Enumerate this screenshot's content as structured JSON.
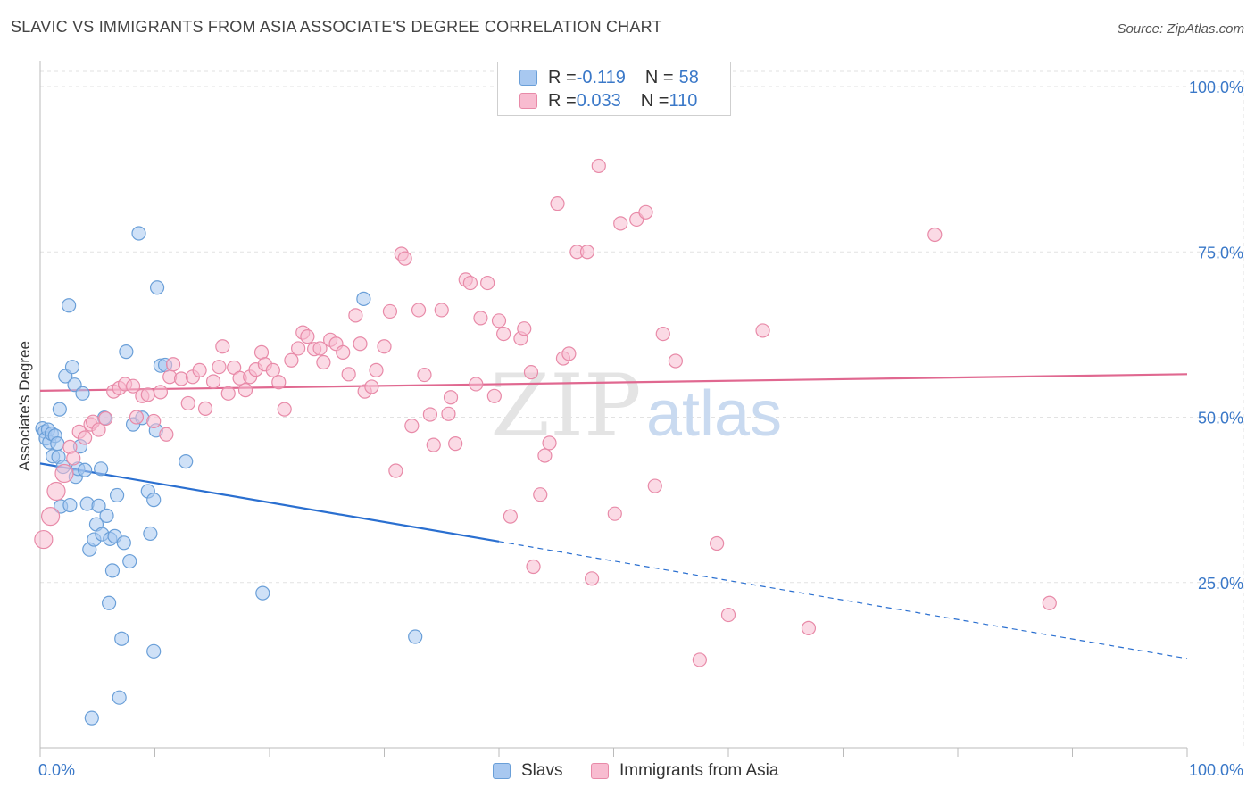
{
  "title": "SLAVIC VS IMMIGRANTS FROM ASIA ASSOCIATE'S DEGREE CORRELATION CHART",
  "source": "Source: ZipAtlas.com",
  "watermark": {
    "zip": "ZIP",
    "atlas": "atlas"
  },
  "legend_stats": [
    {
      "r_label": "R = ",
      "r_value": "-0.119",
      "n_label": "N = ",
      "n_value": "58",
      "color": "#a8c8f0",
      "border": "#6a9fd8"
    },
    {
      "r_label": "R = ",
      "r_value": "0.033",
      "n_label": "N = ",
      "n_value": "110",
      "color": "#f8bcd0",
      "border": "#e88aa8"
    }
  ],
  "chart_data": {
    "type": "scatter",
    "xlabel": "",
    "ylabel": "Associate's Degree",
    "xlim": [
      0,
      100
    ],
    "ylim": [
      0,
      100
    ],
    "x_tick_labels": [
      "0.0%",
      "100.0%"
    ],
    "y_tick_labels": [
      {
        "value": 100,
        "label": "100.0%"
      },
      {
        "value": 75,
        "label": "75.0%"
      },
      {
        "value": 50,
        "label": "50.0%"
      },
      {
        "value": 25,
        "label": "25.0%"
      }
    ],
    "grid": true,
    "legend_position": "bottom",
    "series": [
      {
        "name": "Slavs",
        "color": "#a8c8f0",
        "stroke": "#6a9fd8",
        "trend": {
          "x0": 0,
          "y0": 43.0,
          "x1": 40,
          "y1": 31.2,
          "dash_to_x": 100,
          "dash_to_y": 13.5,
          "color": "#2a6fd0"
        },
        "points": [
          [
            0.2,
            48.3
          ],
          [
            0.4,
            47.8
          ],
          [
            0.5,
            46.8
          ],
          [
            0.7,
            48.1
          ],
          [
            0.8,
            46.2
          ],
          [
            1.0,
            47.5
          ],
          [
            1.1,
            44.1
          ],
          [
            1.3,
            47.2
          ],
          [
            1.5,
            46.0
          ],
          [
            1.6,
            44.0
          ],
          [
            1.7,
            51.2
          ],
          [
            1.8,
            36.5
          ],
          [
            2.0,
            42.5
          ],
          [
            2.2,
            56.2
          ],
          [
            2.5,
            66.9
          ],
          [
            2.6,
            36.7
          ],
          [
            2.8,
            57.6
          ],
          [
            3.0,
            54.9
          ],
          [
            3.1,
            41.0
          ],
          [
            3.3,
            42.2
          ],
          [
            3.5,
            45.6
          ],
          [
            3.7,
            53.6
          ],
          [
            3.9,
            42.0
          ],
          [
            4.1,
            36.9
          ],
          [
            4.3,
            30.0
          ],
          [
            4.5,
            4.5
          ],
          [
            4.7,
            31.5
          ],
          [
            4.9,
            33.8
          ],
          [
            5.1,
            36.6
          ],
          [
            5.3,
            42.2
          ],
          [
            5.4,
            32.3
          ],
          [
            5.6,
            49.9
          ],
          [
            5.8,
            35.1
          ],
          [
            6.0,
            21.9
          ],
          [
            6.1,
            31.6
          ],
          [
            6.3,
            26.8
          ],
          [
            6.5,
            32.0
          ],
          [
            6.7,
            38.2
          ],
          [
            6.9,
            7.6
          ],
          [
            7.1,
            16.5
          ],
          [
            7.3,
            31.0
          ],
          [
            7.5,
            59.9
          ],
          [
            7.8,
            28.2
          ],
          [
            8.1,
            48.9
          ],
          [
            8.6,
            77.8
          ],
          [
            8.9,
            49.9
          ],
          [
            9.4,
            38.8
          ],
          [
            9.6,
            32.4
          ],
          [
            9.9,
            14.6
          ],
          [
            9.9,
            37.5
          ],
          [
            10.1,
            48.0
          ],
          [
            10.2,
            69.6
          ],
          [
            10.5,
            57.8
          ],
          [
            10.9,
            57.9
          ],
          [
            12.7,
            43.3
          ],
          [
            19.4,
            23.4
          ],
          [
            28.2,
            67.9
          ],
          [
            32.7,
            16.8
          ]
        ]
      },
      {
        "name": "Immigrants from Asia",
        "color": "#f8bcd0",
        "stroke": "#e88aa8",
        "trend": {
          "x0": 0,
          "y0": 54.0,
          "x1": 100,
          "y1": 56.5,
          "color": "#e06890"
        },
        "points": [
          [
            0.3,
            31.5
          ],
          [
            0.9,
            35.0
          ],
          [
            1.4,
            38.8
          ],
          [
            2.1,
            41.5
          ],
          [
            2.6,
            45.5
          ],
          [
            2.9,
            43.8
          ],
          [
            3.4,
            47.8
          ],
          [
            3.9,
            46.9
          ],
          [
            4.4,
            48.9
          ],
          [
            4.6,
            49.3
          ],
          [
            5.1,
            48.1
          ],
          [
            5.7,
            49.8
          ],
          [
            6.4,
            53.9
          ],
          [
            6.9,
            54.4
          ],
          [
            7.4,
            55.0
          ],
          [
            8.1,
            54.7
          ],
          [
            8.4,
            50.0
          ],
          [
            8.9,
            53.2
          ],
          [
            9.4,
            53.4
          ],
          [
            9.9,
            49.4
          ],
          [
            10.5,
            53.8
          ],
          [
            11.0,
            47.4
          ],
          [
            11.3,
            56.1
          ],
          [
            11.6,
            58.0
          ],
          [
            12.3,
            55.8
          ],
          [
            12.9,
            52.1
          ],
          [
            13.3,
            56.1
          ],
          [
            13.9,
            57.1
          ],
          [
            14.4,
            51.3
          ],
          [
            15.1,
            55.4
          ],
          [
            15.6,
            57.6
          ],
          [
            15.9,
            60.7
          ],
          [
            16.4,
            53.6
          ],
          [
            16.9,
            57.5
          ],
          [
            17.4,
            55.9
          ],
          [
            17.9,
            54.1
          ],
          [
            18.3,
            56.1
          ],
          [
            18.8,
            57.2
          ],
          [
            19.3,
            59.8
          ],
          [
            19.6,
            58.0
          ],
          [
            20.3,
            57.1
          ],
          [
            20.8,
            55.3
          ],
          [
            21.3,
            51.2
          ],
          [
            21.9,
            58.6
          ],
          [
            22.5,
            60.4
          ],
          [
            22.9,
            62.8
          ],
          [
            23.3,
            62.2
          ],
          [
            23.9,
            60.3
          ],
          [
            24.4,
            60.4
          ],
          [
            24.7,
            58.3
          ],
          [
            25.3,
            61.7
          ],
          [
            25.8,
            61.1
          ],
          [
            26.4,
            59.8
          ],
          [
            26.9,
            56.5
          ],
          [
            27.5,
            65.4
          ],
          [
            27.9,
            61.1
          ],
          [
            28.3,
            53.9
          ],
          [
            28.9,
            54.6
          ],
          [
            29.3,
            57.1
          ],
          [
            30.0,
            60.7
          ],
          [
            30.5,
            66.0
          ],
          [
            31.0,
            41.9
          ],
          [
            31.5,
            74.7
          ],
          [
            31.8,
            74.0
          ],
          [
            32.4,
            48.7
          ],
          [
            33.0,
            66.2
          ],
          [
            33.5,
            56.4
          ],
          [
            34.0,
            50.4
          ],
          [
            34.3,
            45.8
          ],
          [
            35.0,
            66.2
          ],
          [
            35.6,
            50.5
          ],
          [
            36.2,
            46.0
          ],
          [
            37.1,
            70.8
          ],
          [
            37.5,
            70.3
          ],
          [
            38.0,
            55.0
          ],
          [
            38.4,
            65.0
          ],
          [
            39.0,
            70.3
          ],
          [
            39.6,
            53.2
          ],
          [
            40.0,
            64.6
          ],
          [
            40.4,
            62.6
          ],
          [
            41.0,
            35.0
          ],
          [
            41.9,
            61.9
          ],
          [
            42.2,
            63.4
          ],
          [
            43.0,
            27.4
          ],
          [
            43.6,
            38.3
          ],
          [
            44.0,
            44.2
          ],
          [
            44.4,
            46.1
          ],
          [
            45.1,
            82.3
          ],
          [
            45.6,
            58.9
          ],
          [
            46.1,
            59.6
          ],
          [
            46.8,
            75.0
          ],
          [
            47.7,
            75.0
          ],
          [
            48.1,
            25.6
          ],
          [
            48.7,
            88.0
          ],
          [
            50.1,
            35.4
          ],
          [
            50.6,
            79.3
          ],
          [
            52.0,
            79.9
          ],
          [
            52.8,
            81.0
          ],
          [
            53.6,
            39.6
          ],
          [
            54.3,
            62.6
          ],
          [
            55.4,
            58.5
          ],
          [
            57.5,
            13.3
          ],
          [
            59.0,
            30.9
          ],
          [
            60.0,
            20.1
          ],
          [
            63.0,
            63.1
          ],
          [
            67.0,
            18.1
          ],
          [
            78.0,
            77.6
          ],
          [
            88.0,
            21.9
          ],
          [
            35.8,
            53.0
          ],
          [
            42.8,
            56.8
          ]
        ]
      }
    ]
  }
}
